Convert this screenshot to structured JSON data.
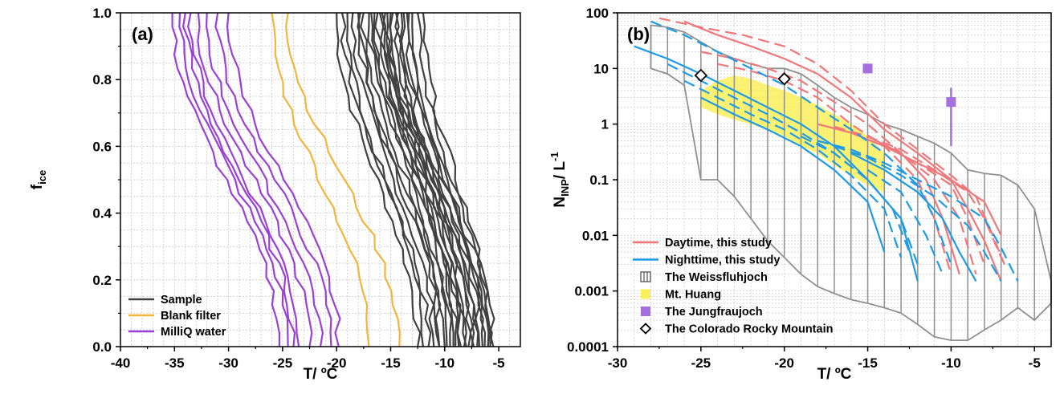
{
  "chart_data": [
    {
      "type": "line",
      "panel_label": "(a)",
      "xlabel": "T/ ºC",
      "ylabel": "f",
      "ylabel_sub": "ice",
      "xlim": [
        -40,
        -3
      ],
      "ylim": [
        0,
        1
      ],
      "x_ticks": [
        -40,
        -35,
        -30,
        -25,
        -20,
        -15,
        -10,
        -5
      ],
      "y_ticks": [
        0,
        0.2,
        0.4,
        0.6,
        0.8,
        1
      ],
      "x_tick_labels": [
        "-40",
        "-35",
        "-30",
        "-25",
        "-20",
        "-15",
        "-10",
        "-5"
      ],
      "y_tick_labels": [
        "0.0",
        "0.2",
        "0.4",
        "0.6",
        "0.8",
        "1.0"
      ],
      "grid": true,
      "legend_position": "bottom-left",
      "legend": [
        {
          "name": "Sample",
          "color": "#404040"
        },
        {
          "name": "Blank filter",
          "color": "#f5b43c"
        },
        {
          "name": "MilliQ water",
          "color": "#9b3fd6"
        }
      ],
      "series_groups": [
        {
          "name": "Sample",
          "color": "#404040",
          "curves": [
            {
              "t_top": -20.0,
              "t_bottom": -12.5
            },
            {
              "t_top": -19.5,
              "t_bottom": -11.5
            },
            {
              "t_top": -19.0,
              "t_bottom": -12.0
            },
            {
              "t_top": -18.5,
              "t_bottom": -11.0
            },
            {
              "t_top": -18.0,
              "t_bottom": -10.5
            },
            {
              "t_top": -17.8,
              "t_bottom": -10.0
            },
            {
              "t_top": -17.5,
              "t_bottom": -9.5
            },
            {
              "t_top": -17.0,
              "t_bottom": -9.0
            },
            {
              "t_top": -16.8,
              "t_bottom": -8.5
            },
            {
              "t_top": -16.5,
              "t_bottom": -8.0
            },
            {
              "t_top": -16.2,
              "t_bottom": -7.5
            },
            {
              "t_top": -16.0,
              "t_bottom": -7.0
            },
            {
              "t_top": -15.8,
              "t_bottom": -6.5
            },
            {
              "t_top": -15.5,
              "t_bottom": -6.0
            },
            {
              "t_top": -15.3,
              "t_bottom": -5.5
            },
            {
              "t_top": -15.0,
              "t_bottom": -10.5
            },
            {
              "t_top": -14.8,
              "t_bottom": -9.8
            },
            {
              "t_top": -14.5,
              "t_bottom": -9.2
            },
            {
              "t_top": -14.3,
              "t_bottom": -8.7
            },
            {
              "t_top": -14.0,
              "t_bottom": -8.2
            },
            {
              "t_top": -13.8,
              "t_bottom": -7.8
            },
            {
              "t_top": -13.5,
              "t_bottom": -7.3
            },
            {
              "t_top": -13.3,
              "t_bottom": -6.8
            },
            {
              "t_top": -13.0,
              "t_bottom": -6.3
            },
            {
              "t_top": -12.5,
              "t_bottom": -6.0
            },
            {
              "t_top": -12.0,
              "t_bottom": -5.8
            }
          ]
        },
        {
          "name": "Blank filter",
          "color": "#f5b43c",
          "curves": [
            {
              "t_top": -26.0,
              "t_bottom": -17.0
            },
            {
              "t_top": -24.5,
              "t_bottom": -14.2
            }
          ]
        },
        {
          "name": "MilliQ water",
          "color": "#9b3fd6",
          "curves": [
            {
              "t_top": -35.2,
              "t_bottom": -25.3
            },
            {
              "t_top": -34.5,
              "t_bottom": -24.5
            },
            {
              "t_top": -34.0,
              "t_bottom": -24.0
            },
            {
              "t_top": -33.5,
              "t_bottom": -23.5
            },
            {
              "t_top": -32.8,
              "t_bottom": -22.5
            },
            {
              "t_top": -32.0,
              "t_bottom": -21.5
            },
            {
              "t_top": -31.0,
              "t_bottom": -20.5
            },
            {
              "t_top": -30.0,
              "t_bottom": -19.8
            }
          ]
        }
      ]
    },
    {
      "type": "line",
      "panel_label": "(b)",
      "xlabel": "T/ ºC",
      "ylabel": "N",
      "ylabel_sub": "INP",
      "ylabel_rest": "/ L",
      "ylabel_sup": "-1",
      "xlim": [
        -30,
        -4
      ],
      "ylim": [
        0.0001,
        100
      ],
      "y_scale": "log",
      "x_ticks": [
        -30,
        -25,
        -20,
        -15,
        -10,
        -5
      ],
      "x_tick_labels": [
        "-30",
        "-25",
        "-20",
        "-15",
        "-10",
        "-5"
      ],
      "y_ticks": [
        0.0001,
        0.001,
        0.01,
        0.1,
        1,
        10,
        100
      ],
      "y_tick_labels": [
        "0.0001",
        "0.001",
        "0.01",
        "0.1",
        "1",
        "10",
        "100"
      ],
      "grid": true,
      "legend_position": "bottom-left",
      "legend": [
        {
          "name": "Daytime, this study",
          "color": "#f0787a",
          "kind": "line"
        },
        {
          "name": "Nighttime, this study",
          "color": "#1e9be6",
          "kind": "line"
        },
        {
          "name": "The Weissfluhjoch",
          "color": "#909090",
          "kind": "hatched-box"
        },
        {
          "name": "Mt. Huang",
          "color": "#faf05a",
          "kind": "fill"
        },
        {
          "name": "The Jungfraujoch",
          "color": "#a66fe0",
          "kind": "square"
        },
        {
          "name": "The Colorado Rocky Mountain",
          "color": "#000000",
          "kind": "diamond"
        }
      ],
      "weissfluhjoch_range": {
        "color": "#909090",
        "x": [
          -28,
          -27,
          -26,
          -25,
          -24,
          -23,
          -22,
          -21,
          -20,
          -19,
          -18,
          -17,
          -16,
          -15,
          -14,
          -13,
          -12,
          -11,
          -10,
          -9,
          -8,
          -7,
          -6,
          -5,
          -4
        ],
        "upper": [
          60,
          55,
          45,
          30,
          20,
          15,
          12,
          10,
          10,
          8,
          5,
          3,
          2,
          1.5,
          1,
          0.8,
          0.6,
          0.45,
          0.3,
          0.15,
          0.13,
          0.12,
          0.08,
          0.03,
          0.0015
        ],
        "lower": [
          10,
          8,
          5,
          0.1,
          0.1,
          0.05,
          0.02,
          0.008,
          0.004,
          0.002,
          0.0012,
          0.0009,
          0.0007,
          0.0006,
          0.0005,
          0.0004,
          0.00025,
          0.00015,
          0.00013,
          0.00013,
          0.0002,
          0.0003,
          0.0005,
          0.0003,
          0.0006
        ]
      },
      "mt_huang_range": {
        "color": "#faf05a",
        "x": [
          -25,
          -24,
          -23,
          -22,
          -21,
          -20,
          -19,
          -18,
          -17,
          -16,
          -15,
          -14
        ],
        "upper": [
          4,
          6,
          7.5,
          6.5,
          5,
          4,
          3,
          2.2,
          1.5,
          1,
          0.6,
          0.3
        ],
        "lower": [
          2,
          1.5,
          1.2,
          1.0,
          0.8,
          0.6,
          0.4,
          0.3,
          0.18,
          0.12,
          0.08,
          0.06
        ]
      },
      "jungfraujoch": {
        "color": "#a66fe0",
        "points": [
          {
            "x": -15,
            "y": 10
          },
          {
            "x": -10,
            "y": 2.5,
            "y_err": [
              0.4,
              4.5
            ]
          }
        ]
      },
      "colorado_rocky_mountain": {
        "color": "#000000",
        "points": [
          {
            "x": -25,
            "y": 7.5
          },
          {
            "x": -20,
            "y": 6.5
          }
        ]
      },
      "series_groups": [
        {
          "name": "Daytime, this study",
          "color": "#f0787a",
          "curves": [
            {
              "x": [
                -27.5,
                -25,
                -22.5,
                -20,
                -18,
                -16,
                -14,
                -12,
                -10,
                -8.5,
                -7.5,
                -6.8
              ],
              "y": [
                80,
                55,
                40,
                25,
                12,
                4,
                1,
                0.35,
                0.12,
                0.05,
                0.01,
                0.003
              ]
            },
            {
              "x": [
                -26,
                -24,
                -22,
                -20,
                -18,
                -16,
                -14,
                -12,
                -10,
                -9,
                -8,
                -7
              ],
              "y": [
                70,
                40,
                25,
                15,
                8,
                3,
                0.8,
                0.3,
                0.1,
                0.03,
                0.008,
                0.0015
              ]
            },
            {
              "x": [
                -25,
                -23,
                -21,
                -19,
                -17,
                -15,
                -13,
                -11,
                -9.5,
                -8.5
              ],
              "y": [
                20,
                15,
                10,
                6,
                2.5,
                1,
                0.3,
                0.1,
                0.02,
                0.002
              ]
            },
            {
              "x": [
                -24,
                -22,
                -20,
                -18,
                -16,
                -14,
                -12,
                -11,
                -10
              ],
              "y": [
                12,
                9,
                6,
                3,
                1,
                0.4,
                0.1,
                0.02,
                0.002
              ]
            },
            {
              "x": [
                -18,
                -16,
                -14,
                -12,
                -10,
                -8,
                -7
              ],
              "y": [
                1,
                0.7,
                0.4,
                0.2,
                0.1,
                0.04,
                0.01
              ]
            },
            {
              "x": [
                -17,
                -15,
                -13,
                -11,
                -9,
                -8,
                -7
              ],
              "y": [
                0.9,
                0.6,
                0.35,
                0.15,
                0.06,
                0.02,
                0.004
              ]
            },
            {
              "x": [
                -16,
                -14,
                -12,
                -10,
                -9,
                -8
              ],
              "y": [
                0.7,
                0.4,
                0.2,
                0.08,
                0.02,
                0.003
              ]
            },
            {
              "x": [
                -15,
                -13,
                -11.5,
                -10.5,
                -9.5
              ],
              "y": [
                0.6,
                0.3,
                0.1,
                0.02,
                0.002
              ]
            }
          ]
        },
        {
          "name": "Nighttime, this study",
          "color": "#1e9be6",
          "curves": [
            {
              "x": [
                -28,
                -26,
                -24,
                -22,
                -20,
                -18,
                -16,
                -14,
                -12,
                -11,
                -10
              ],
              "y": [
                70,
                40,
                20,
                10,
                5,
                2,
                0.8,
                0.3,
                0.08,
                0.02,
                0.003
              ]
            },
            {
              "x": [
                -29,
                -27,
                -25,
                -23,
                -21,
                -19,
                -17,
                -15,
                -13,
                -12
              ],
              "y": [
                25,
                15,
                8,
                4,
                2,
                1,
                0.4,
                0.1,
                0.02,
                0.0015
              ]
            },
            {
              "x": [
                -27,
                -25,
                -23,
                -21,
                -19,
                -17,
                -15,
                -13,
                -12
              ],
              "y": [
                12,
                6,
                3,
                1.5,
                0.7,
                0.3,
                0.1,
                0.02,
                0.003
              ]
            },
            {
              "x": [
                -26,
                -24,
                -22,
                -20,
                -18,
                -16,
                -14,
                -13
              ],
              "y": [
                6,
                3,
                1.5,
                0.8,
                0.35,
                0.12,
                0.03,
                0.004
              ]
            },
            {
              "x": [
                -25,
                -23,
                -21,
                -19,
                -17,
                -15,
                -14
              ],
              "y": [
                3,
                1.5,
                0.8,
                0.4,
                0.15,
                0.04,
                0.005
              ]
            },
            {
              "x": [
                -18,
                -16,
                -14,
                -12,
                -10,
                -8,
                -7,
                -6
              ],
              "y": [
                0.5,
                0.35,
                0.2,
                0.1,
                0.05,
                0.02,
                0.006,
                0.0015
              ]
            },
            {
              "x": [
                -17,
                -15,
                -13,
                -11,
                -9,
                -8,
                -7
              ],
              "y": [
                0.4,
                0.25,
                0.12,
                0.05,
                0.015,
                0.005,
                0.0015
              ]
            },
            {
              "x": [
                -16,
                -14,
                -12,
                -10.5,
                -9.5,
                -8.5
              ],
              "y": [
                0.3,
                0.15,
                0.06,
                0.02,
                0.005,
                0.0015
              ]
            },
            {
              "x": [
                -15,
                -13,
                -11.5,
                -10.5
              ],
              "y": [
                0.15,
                0.06,
                0.01,
                0.002
              ]
            },
            {
              "x": [
                -19,
                -17,
                -15,
                -13.5,
                -12.5
              ],
              "y": [
                0.6,
                0.3,
                0.1,
                0.03,
                0.005
              ]
            }
          ]
        }
      ]
    }
  ]
}
